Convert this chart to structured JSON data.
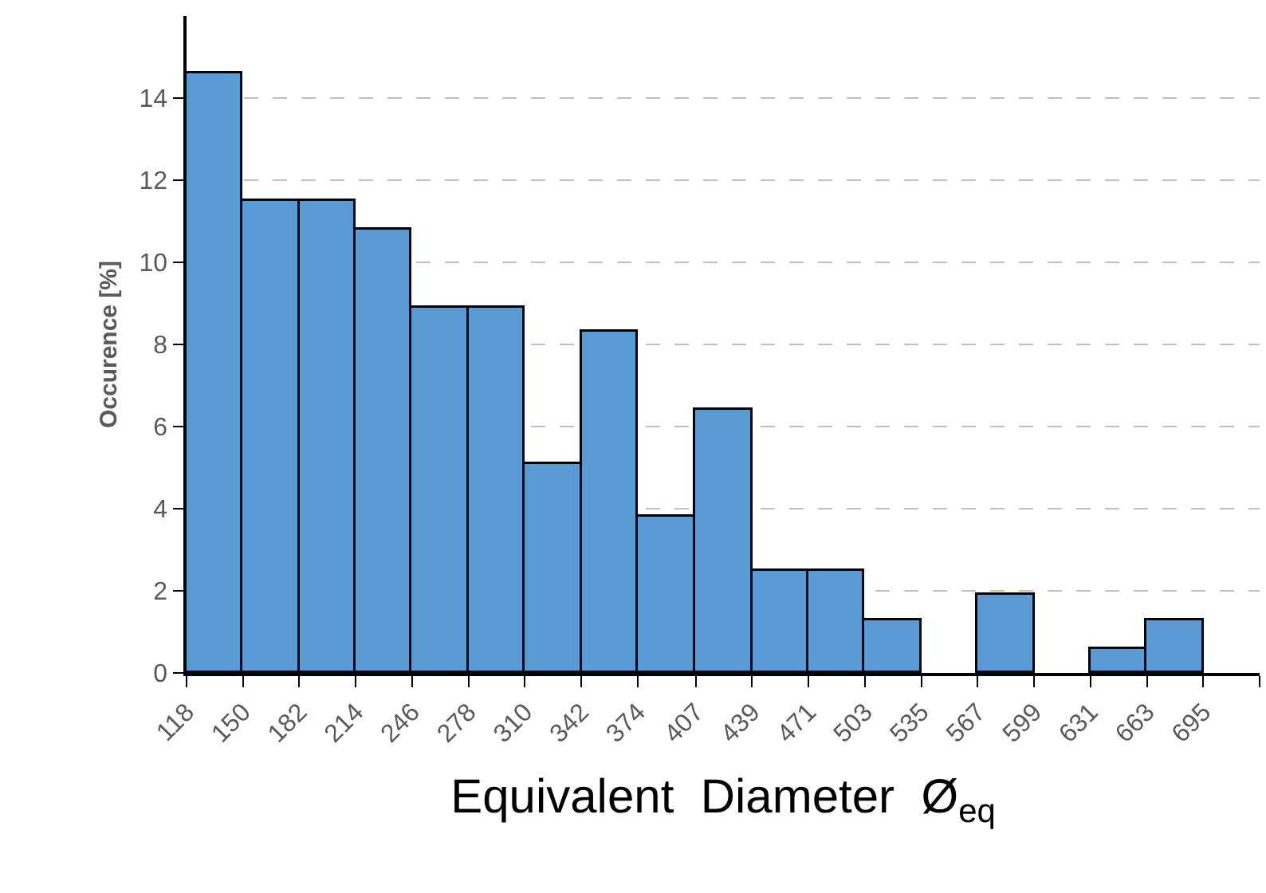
{
  "chart_data": {
    "type": "histogram",
    "xlabel": "Equivalent  Diameter  Ø$_{eq}$",
    "ylabel": "Occurence [%]",
    "bins": [
      118,
      150,
      182,
      214,
      246,
      278,
      310,
      342,
      374,
      407,
      439,
      471,
      503,
      535,
      567,
      599,
      631,
      663,
      695
    ],
    "values": [
      14.6,
      11.5,
      11.5,
      10.8,
      8.9,
      8.9,
      5.1,
      8.3,
      3.8,
      6.4,
      2.5,
      2.5,
      1.3,
      0,
      1.9,
      0,
      0.6,
      1.3
    ],
    "color": "#5b9bd5",
    "xlim": [
      118,
      727
    ],
    "xticks": [
      118,
      150,
      182,
      214,
      246,
      278,
      310,
      342,
      374,
      407,
      439,
      471,
      503,
      535,
      567,
      599,
      631,
      663,
      695,
      {
        "value": 727,
        "label": null
      }
    ],
    "ylim": [
      0,
      16
    ],
    "yticks": [
      0,
      2,
      4,
      6,
      8,
      10,
      12,
      14
    ],
    "grid": "y",
    "legend": false
  }
}
